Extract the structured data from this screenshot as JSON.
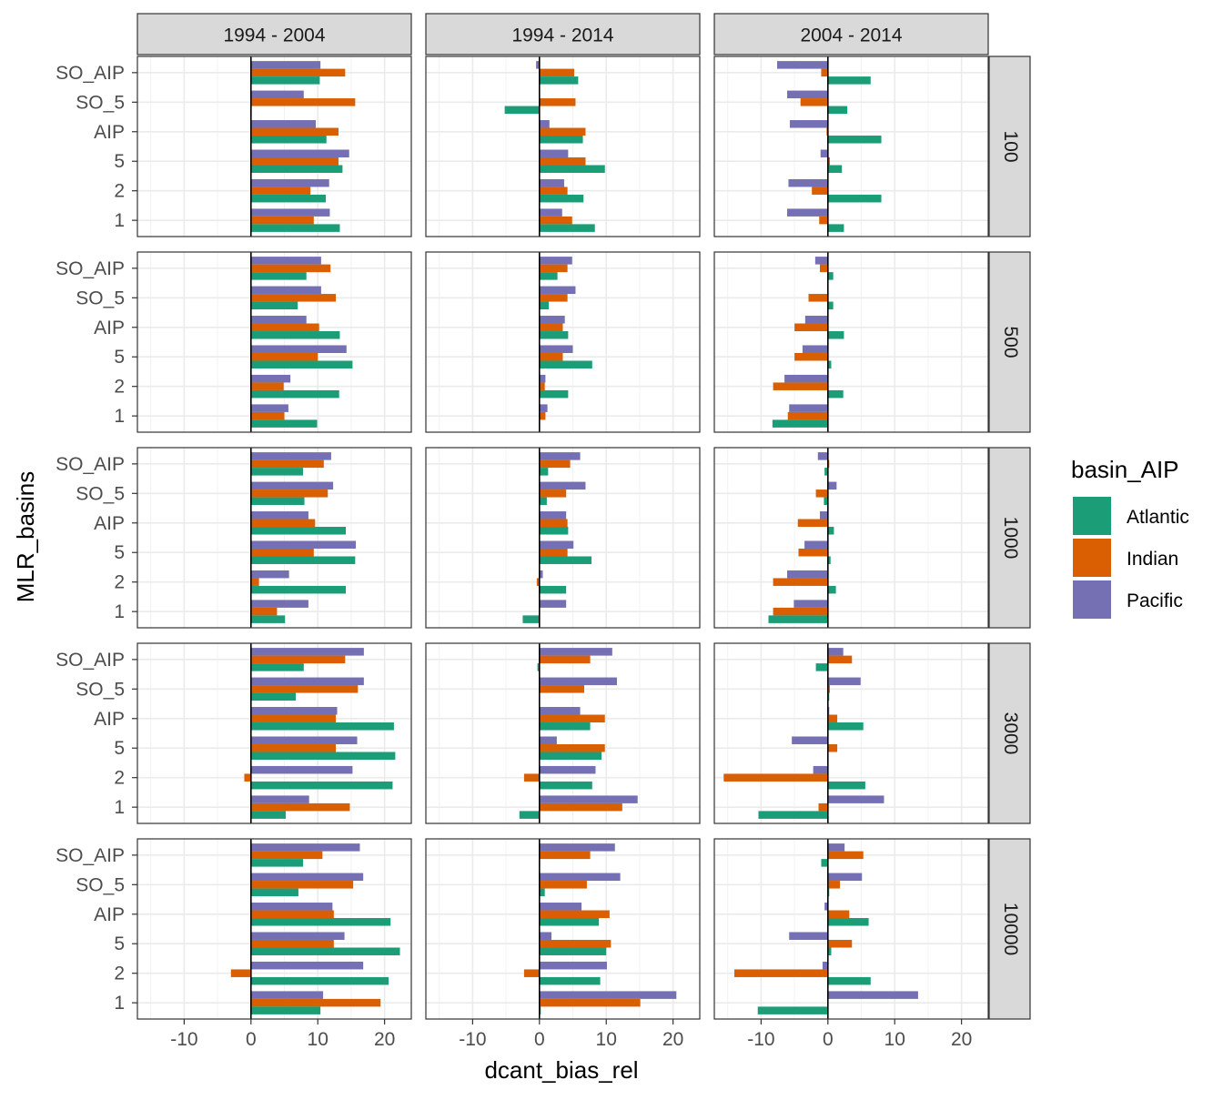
{
  "chart_data": {
    "type": "bar",
    "orientation": "horizontal",
    "xlabel": "dcant_bias_rel",
    "ylabel": "MLR_basins",
    "xlim": [
      -17,
      24
    ],
    "xticks": [
      -10,
      0,
      10,
      20
    ],
    "xtick_labels": [
      "-10",
      "0",
      "10",
      "20"
    ],
    "grid": true,
    "legend": {
      "title": "basin_AIP",
      "position": "right",
      "entries": [
        {
          "name": "Atlantic",
          "color": "#1B9E77"
        },
        {
          "name": "Indian",
          "color": "#D95F02"
        },
        {
          "name": "Pacific",
          "color": "#7570B3"
        }
      ]
    },
    "categories": [
      "SO_AIP",
      "SO_5",
      "AIP",
      "5",
      "2",
      "1"
    ],
    "col_facets": [
      "1994 - 2004",
      "1994 - 2014",
      "2004 - 2014"
    ],
    "row_facets": [
      "100",
      "500",
      "1000",
      "3000",
      "10000"
    ],
    "panels": [
      [
        {
          "Atlantic": [
            10.3,
            0.1,
            11.3,
            13.7,
            11.2,
            13.3
          ],
          "Indian": [
            14.1,
            15.6,
            13.1,
            13.1,
            8.9,
            9.4
          ],
          "Pacific": [
            10.4,
            7.9,
            9.7,
            14.7,
            11.7,
            11.8
          ]
        },
        {
          "Atlantic": [
            5.8,
            -5.2,
            6.5,
            9.8,
            6.6,
            8.3
          ],
          "Indian": [
            5.2,
            5.4,
            6.9,
            6.9,
            4.2,
            4.9
          ],
          "Pacific": [
            -0.5,
            0.0,
            1.5,
            4.3,
            3.7,
            3.4
          ]
        },
        {
          "Atlantic": [
            6.4,
            2.9,
            8.0,
            2.1,
            8.0,
            2.4
          ],
          "Indian": [
            -1.0,
            -4.1,
            -0.2,
            0.3,
            -2.4,
            -1.3
          ],
          "Pacific": [
            -7.6,
            -6.1,
            -5.7,
            -1.1,
            -5.9,
            -6.1
          ]
        }
      ],
      [
        {
          "Atlantic": [
            8.3,
            7.0,
            13.3,
            15.2,
            13.2,
            9.9
          ],
          "Indian": [
            11.9,
            12.7,
            10.2,
            10.0,
            4.9,
            5.0
          ],
          "Pacific": [
            10.5,
            10.5,
            8.3,
            14.3,
            5.9,
            5.6
          ]
        },
        {
          "Atlantic": [
            2.7,
            1.4,
            4.3,
            7.9,
            4.3,
            0.1
          ],
          "Indian": [
            4.2,
            4.2,
            3.5,
            3.5,
            0.8,
            0.9
          ],
          "Pacific": [
            4.9,
            5.4,
            3.8,
            5.0,
            0.9,
            1.2
          ]
        },
        {
          "Atlantic": [
            0.8,
            0.8,
            2.4,
            0.5,
            2.3,
            -8.3
          ],
          "Indian": [
            -1.2,
            -2.9,
            -5.0,
            -5.0,
            -8.2,
            -6.0
          ],
          "Pacific": [
            -1.9,
            0.0,
            -3.4,
            -3.8,
            -6.5,
            -5.8
          ]
        }
      ],
      [
        {
          "Atlantic": [
            7.8,
            8.0,
            14.2,
            15.6,
            14.2,
            5.1
          ],
          "Indian": [
            10.9,
            11.5,
            9.6,
            9.4,
            1.2,
            3.9
          ],
          "Pacific": [
            12.0,
            12.3,
            8.6,
            15.7,
            5.7,
            8.6
          ]
        },
        {
          "Atlantic": [
            1.3,
            1.1,
            4.3,
            7.8,
            4.0,
            -2.5
          ],
          "Indian": [
            4.6,
            4.0,
            4.2,
            4.2,
            -0.4,
            0.0
          ],
          "Pacific": [
            6.1,
            6.9,
            4.0,
            5.1,
            0.5,
            4.0
          ]
        },
        {
          "Atlantic": [
            -0.5,
            -0.6,
            0.9,
            0.4,
            1.2,
            -8.9
          ],
          "Indian": [
            0.2,
            -1.8,
            -4.5,
            -4.4,
            -8.2,
            -8.2
          ],
          "Pacific": [
            -1.5,
            1.3,
            -1.2,
            -3.5,
            -6.1,
            -5.1
          ]
        }
      ],
      [
        {
          "Atlantic": [
            7.9,
            6.7,
            21.4,
            21.6,
            21.2,
            5.2
          ],
          "Indian": [
            14.1,
            16.0,
            12.7,
            12.7,
            -1.0,
            14.8
          ],
          "Pacific": [
            16.9,
            16.9,
            12.9,
            15.9,
            15.2,
            8.7
          ]
        },
        {
          "Atlantic": [
            -0.3,
            0.0,
            7.6,
            9.3,
            7.9,
            -3.0
          ],
          "Indian": [
            7.6,
            6.7,
            9.8,
            9.8,
            -2.3,
            12.4
          ],
          "Pacific": [
            10.9,
            11.6,
            6.1,
            2.6,
            8.4,
            14.7
          ]
        },
        {
          "Atlantic": [
            -1.8,
            0.2,
            5.3,
            0.0,
            5.6,
            -10.4
          ],
          "Indian": [
            3.6,
            0.3,
            1.4,
            1.4,
            -15.6,
            -1.4
          ],
          "Pacific": [
            2.3,
            4.9,
            0.2,
            -5.4,
            -2.2,
            8.4
          ]
        }
      ],
      [
        {
          "Atlantic": [
            7.8,
            7.1,
            20.9,
            22.3,
            20.6,
            10.4
          ],
          "Indian": [
            10.7,
            15.3,
            12.4,
            12.4,
            -3.0,
            19.4
          ],
          "Pacific": [
            16.3,
            16.8,
            12.2,
            14.0,
            16.8,
            10.8
          ]
        },
        {
          "Atlantic": [
            0.1,
            0.8,
            8.9,
            10.0,
            9.1,
            0.2
          ],
          "Indian": [
            7.6,
            7.1,
            10.5,
            10.7,
            -2.3,
            15.1
          ],
          "Pacific": [
            11.3,
            12.1,
            6.3,
            1.8,
            10.1,
            20.5
          ]
        },
        {
          "Atlantic": [
            -1.0,
            0.2,
            6.1,
            0.5,
            6.4,
            -10.5
          ],
          "Indian": [
            5.3,
            1.8,
            3.2,
            3.6,
            -14.0,
            0.0
          ],
          "Pacific": [
            2.5,
            5.1,
            -0.5,
            -5.8,
            -0.8,
            13.5
          ]
        }
      ]
    ]
  }
}
